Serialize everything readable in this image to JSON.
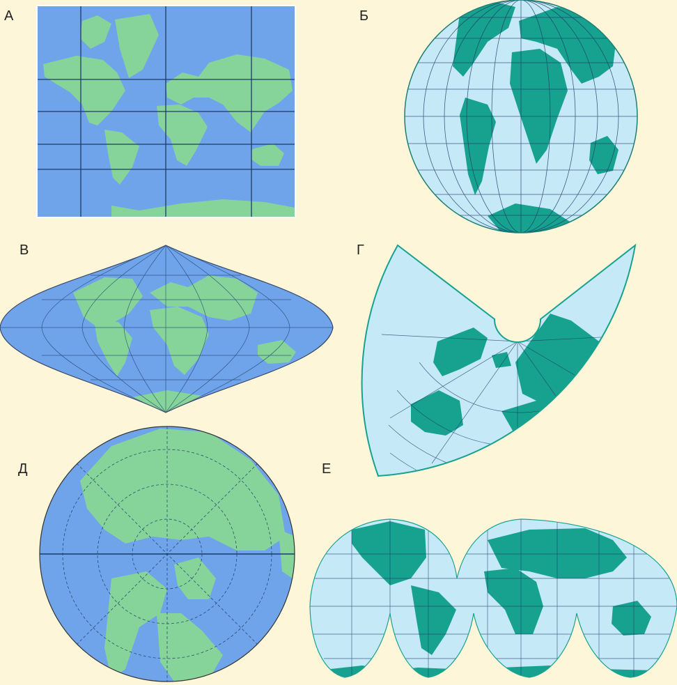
{
  "labels": {
    "a": "А",
    "b": "Б",
    "v": "В",
    "g": "Г",
    "d": "Д",
    "e": "Е"
  },
  "colors": {
    "background": "#fdf6d9",
    "ocean_dark": "#6fa3ea",
    "ocean_light": "#c6e9f8",
    "land_green": "#86d49a",
    "land_teal": "#17a290",
    "graticule": "#1c3a66",
    "outline": "#1d7f72"
  }
}
